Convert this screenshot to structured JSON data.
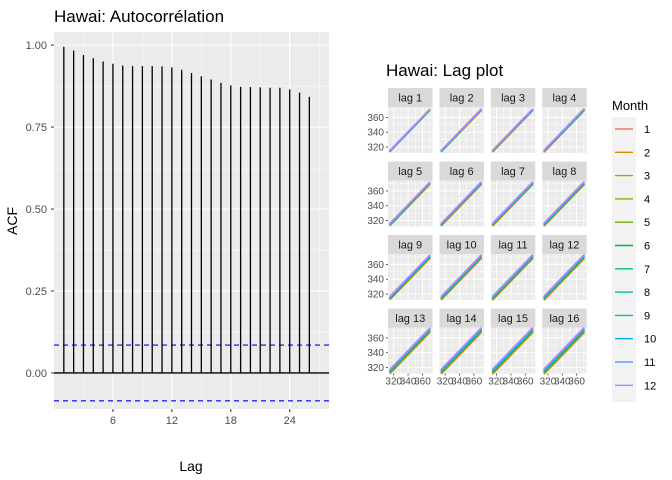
{
  "colors": {
    "panel_bg": "#EBEBEB",
    "grid_major": "#FFFFFF",
    "strip_bg": "#D9D9D9",
    "spike": "#000000",
    "ci_line": "#0000FF",
    "month_colors": [
      "#F8766D",
      "#E58700",
      "#C99800",
      "#A3A500",
      "#6BB100",
      "#00BA38",
      "#00BF7D",
      "#00C0AF",
      "#00BCD8",
      "#00B0F6",
      "#619CFF",
      "#B983FF"
    ]
  },
  "chart_data": [
    {
      "type": "bar",
      "title": "Hawai: Autocorrélation",
      "xlabel": "Lag",
      "ylabel": "ACF",
      "x_ticks": [
        6,
        12,
        18,
        24
      ],
      "y_ticks": [
        "0.00",
        "0.25",
        "0.50",
        "0.75",
        "1.00"
      ],
      "y_tick_values": [
        0,
        0.25,
        0.5,
        0.75,
        1.0
      ],
      "xlim": [
        0,
        28
      ],
      "ylim": [
        -0.11,
        1.04
      ],
      "lags": [
        1,
        2,
        3,
        4,
        5,
        6,
        7,
        8,
        9,
        10,
        11,
        12,
        13,
        14,
        15,
        16,
        17,
        18,
        19,
        20,
        21,
        22,
        23,
        24,
        25,
        26
      ],
      "values": [
        0.995,
        0.983,
        0.97,
        0.96,
        0.95,
        0.943,
        0.938,
        0.936,
        0.936,
        0.936,
        0.935,
        0.932,
        0.925,
        0.915,
        0.905,
        0.895,
        0.885,
        0.877,
        0.873,
        0.872,
        0.871,
        0.87,
        0.87,
        0.865,
        0.855,
        0.842
      ],
      "ci": 0.085
    },
    {
      "type": "scatter",
      "title": "Hawai: Lag plot",
      "facets": [
        "lag 1",
        "lag 2",
        "lag 3",
        "lag 4",
        "lag 5",
        "lag 6",
        "lag 7",
        "lag 8",
        "lag 9",
        "lag 10",
        "lag 11",
        "lag 12",
        "lag 13",
        "lag 14",
        "lag 15",
        "lag 16"
      ],
      "y_ticks": [
        "320",
        "340",
        "360"
      ],
      "x_ticks": [
        "320",
        "340",
        "360"
      ],
      "xlim": [
        312,
        374
      ],
      "ylim": [
        312,
        374
      ],
      "legend": {
        "title": "Month",
        "placement": "right",
        "entries": [
          "1",
          "2",
          "3",
          "4",
          "5",
          "6",
          "7",
          "8",
          "9",
          "10",
          "11",
          "12"
        ]
      }
    }
  ]
}
